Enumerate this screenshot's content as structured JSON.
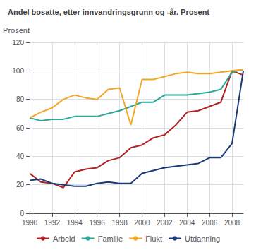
{
  "chart_data": {
    "type": "line",
    "title": "Andel bosatte, etter innvandringsgrunn og -år. Prosent",
    "ylabel": "Prosent",
    "x": [
      1990,
      1991,
      1992,
      1993,
      1994,
      1995,
      1996,
      1997,
      1998,
      1999,
      2000,
      2001,
      2002,
      2003,
      2004,
      2005,
      2006,
      2007,
      2008,
      2009
    ],
    "series": [
      {
        "name": "Arbeid",
        "color": "#b22222",
        "values": [
          28,
          22,
          21,
          18,
          29,
          31,
          32,
          37,
          39,
          46,
          48,
          53,
          55,
          62,
          71,
          72,
          75,
          78,
          100,
          97
        ]
      },
      {
        "name": "Familie",
        "color": "#2aa898",
        "values": [
          67,
          65,
          66,
          66,
          68,
          68,
          68,
          70,
          72,
          75,
          78,
          78,
          83,
          83,
          83,
          84,
          85,
          87,
          99,
          101
        ]
      },
      {
        "name": "Flukt",
        "color": "#f5a623",
        "values": [
          67,
          71,
          74,
          80,
          83,
          81,
          80,
          87,
          88,
          62,
          94,
          94,
          96,
          98,
          99,
          98,
          98,
          99,
          100,
          101
        ]
      },
      {
        "name": "Utdanning",
        "color": "#1a3a7a",
        "values": [
          23,
          24,
          21,
          20,
          19,
          19,
          21,
          22,
          21,
          21,
          28,
          30,
          32,
          33,
          34,
          35,
          39,
          39,
          49,
          100
        ]
      }
    ],
    "xlim": [
      1990,
      2009
    ],
    "xticks": [
      1990,
      1992,
      1994,
      1996,
      1998,
      2000,
      2002,
      2004,
      2006,
      2008
    ],
    "ylim": [
      0,
      120
    ],
    "yticks": [
      0,
      20,
      40,
      60,
      80,
      100,
      120
    ],
    "grid": true,
    "legend": "bottom"
  }
}
